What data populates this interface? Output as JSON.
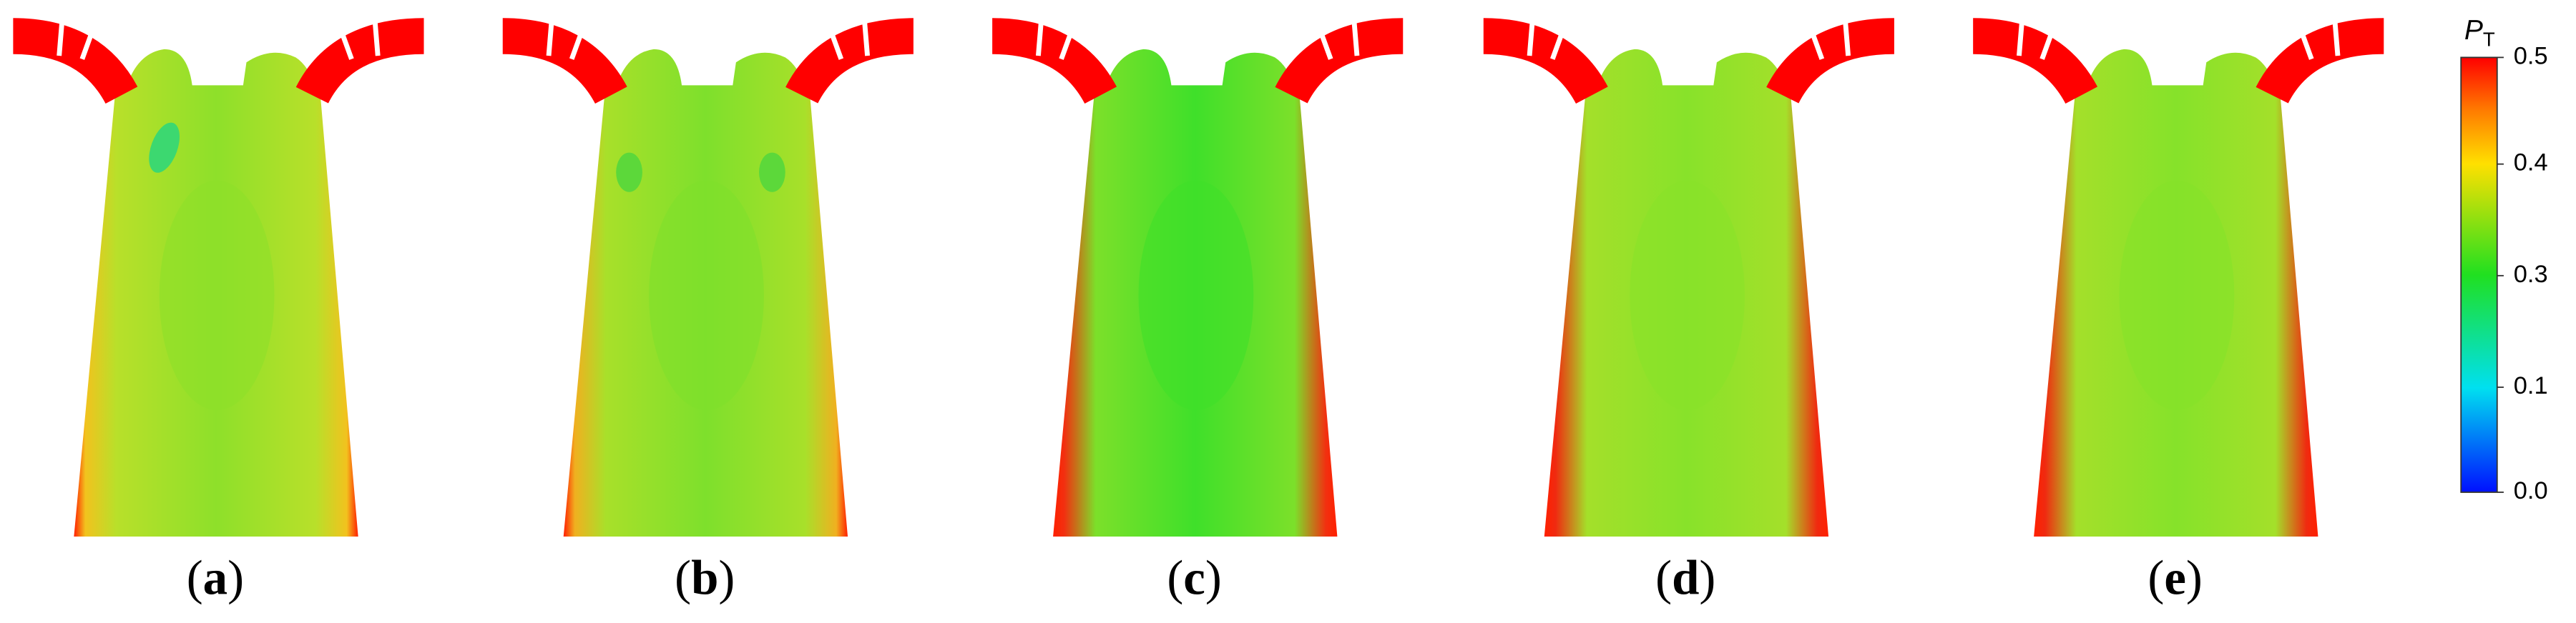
{
  "panels": [
    {
      "label": "(a)",
      "edge": "#f2c21e",
      "mid": "#b8e02a",
      "core": "#8ee02a"
    },
    {
      "label": "(b)",
      "edge": "#f0b020",
      "mid": "#a8e02a",
      "core": "#7ee02c"
    },
    {
      "label": "(c)",
      "edge": "#f23010",
      "mid": "#7ce02a",
      "core": "#3fe02a"
    },
    {
      "label": "(d)",
      "edge": "#f02a10",
      "mid": "#a4e02a",
      "core": "#88e22a"
    },
    {
      "label": "(e)",
      "edge": "#f02a10",
      "mid": "#a4e02a",
      "core": "#86e22a"
    }
  ],
  "colorbar": {
    "symbol": "P",
    "subscript": "T",
    "ticks": [
      "0.5",
      "0.4",
      "0.3",
      "0.1",
      "0.0"
    ]
  }
}
